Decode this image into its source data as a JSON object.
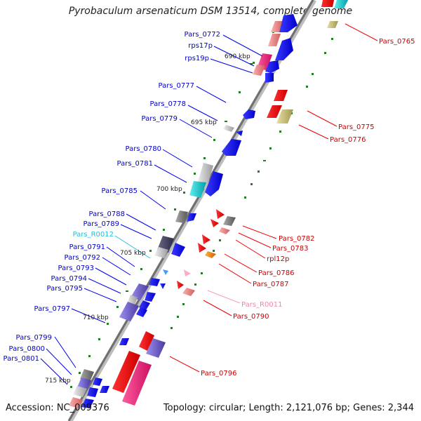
{
  "title": "Pyrobaculum arsenaticum DSM 13514, complete genome",
  "footer": {
    "accession": "Accession: NC_009376",
    "topology": "Topology: circular; Length: 2,121,076 bp; Genes: 2,344"
  },
  "colors": {
    "forward_label": "#0000cc",
    "reverse_label": "#cc0000",
    "rna_label_forward": "#22c0d8",
    "rna_label_reverse": "#ee88aa",
    "backbone": "#8a8a8a",
    "marker": "#2a7a2a"
  },
  "kbp_labels": [
    "690 kbp",
    "695 kbp",
    "700 kbp",
    "705 kbp",
    "710 kbp",
    "715 kbp"
  ],
  "left_labels": [
    "Pars_0772",
    "rps17p",
    "rps19p",
    "Pars_0777",
    "Pars_0778",
    "Pars_0779",
    "Pars_0780",
    "Pars_0781",
    "Pars_0785",
    "Pars_0788",
    "Pars_0789",
    "Pars_R0012",
    "Pars_0791",
    "Pars_0792",
    "Pars_0793",
    "Pars_0794",
    "Pars_0795",
    "Pars_0797",
    "Pars_0799",
    "Pars_0800",
    "Pars_0801"
  ],
  "right_labels": [
    "Pars_0765",
    "Pars_0775",
    "Pars_0776",
    "Pars_0782",
    "Pars_0783",
    "rpl12p",
    "Pars_0786",
    "Pars_0787",
    "Pars_R0011",
    "Pars_0790",
    "Pars_0796"
  ]
}
